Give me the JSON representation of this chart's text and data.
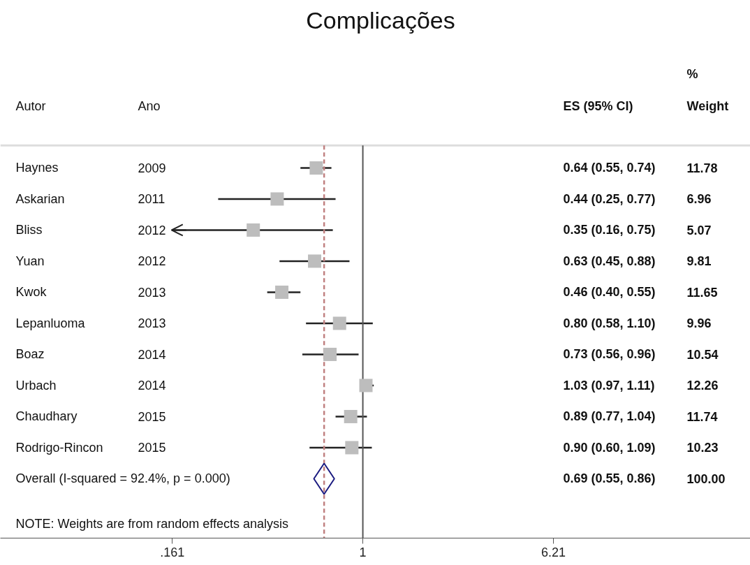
{
  "chart_data": {
    "type": "scatter",
    "orientation": "horizontal",
    "title": "Complicações",
    "log": "x",
    "grid": false,
    "categories": [
      "Haynes",
      "Askarian",
      "Bliss",
      "Yuan",
      "Kwok",
      "Lepanluoma",
      "Boaz",
      "Urbach",
      "Chaudhary",
      "Rodrigo-Rincon",
      "Overall  (I-squared = 92.4%, p = 0.000)"
    ],
    "xlim": [
      0.031,
      41
    ],
    "xticks": [
      {
        "value": 0.161,
        "label": ".161"
      },
      1,
      6.21
    ],
    "series": [
      {
        "marker": "square",
        "color": "#bdbdbd",
        "values": [
          0.64,
          0.44,
          0.35,
          0.63,
          0.46,
          0.8,
          0.73,
          1.03,
          0.89,
          0.9,
          null
        ],
        "errors": [
          [
            0.55,
            0.74
          ],
          [
            0.25,
            0.77
          ],
          [
            0.16,
            0.75
          ],
          [
            0.45,
            0.88
          ],
          [
            0.4,
            0.55
          ],
          [
            0.58,
            1.1
          ],
          [
            0.56,
            0.96
          ],
          [
            0.97,
            1.11
          ],
          [
            0.77,
            1.04
          ],
          [
            0.6,
            1.09
          ],
          null
        ]
      },
      {
        "marker": "diamond",
        "color": "#1a1a80",
        "values": [
          null,
          null,
          null,
          null,
          null,
          null,
          null,
          null,
          null,
          null,
          0.69
        ]
      }
    ],
    "ref_lines": [
      {
        "axis": "x",
        "value": 1,
        "color": "#555555",
        "line_style": "solid"
      },
      {
        "axis": "x",
        "value": 0.69,
        "color": "#c08080",
        "line_style": "dashed"
      }
    ],
    "annotations": [
      "Autor",
      "Ano",
      "ES (95% CI)",
      "%\nWeight",
      "NOTE: Weights are from random effects analysis",
      "2009",
      "2011",
      "2012",
      "2012",
      "2013",
      "2013",
      "2014",
      "2014",
      "2015",
      "2015",
      "0.64 (0.55, 0.74)",
      "0.44 (0.25, 0.77)",
      "0.35 (0.16, 0.75)",
      "0.63 (0.45, 0.88)",
      "0.46 (0.40, 0.55)",
      "0.80 (0.58, 1.10)",
      "0.73 (0.56, 0.96)",
      "1.03 (0.97, 1.11)",
      "0.89 (0.77, 1.04)",
      "0.90 (0.60, 1.09)",
      "0.69 (0.55, 0.86)",
      "11.78",
      "6.96",
      "5.07",
      "9.81",
      "11.65",
      "9.96",
      "10.54",
      "12.26",
      "11.74",
      "10.23",
      "100.00"
    ]
  }
}
